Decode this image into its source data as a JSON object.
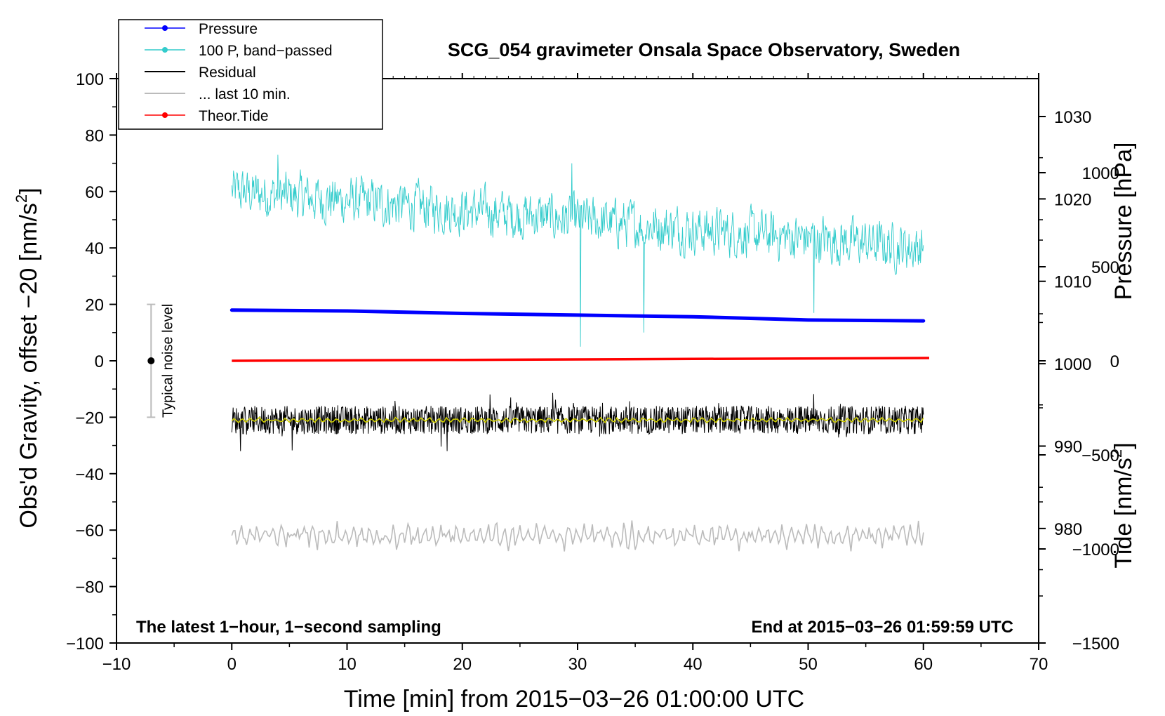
{
  "chart_data": {
    "type": "line",
    "title": "SCG_054 gravimeter Onsala Space Observatory, Sweden",
    "xlabel": "Time [min] from 2015−03−26 01:00:00 UTC",
    "ylabel_left": "Obs'd Gravity, offset −20 [nm/s",
    "ylabel_left_sup": "2",
    "ylabel_left_end": "]",
    "ylabel_right_pressure": "Pressure [hPa]",
    "ylabel_right_tide": "Tide [nm/s",
    "ylabel_right_tide_sup": "2",
    "ylabel_right_tide_end": "]",
    "xlim": [
      -10,
      70
    ],
    "ylim_left": [
      -100,
      100
    ],
    "pressure_axis": {
      "range": [
        966.1,
        1034.6
      ],
      "ticks": [
        980,
        990,
        1000,
        1010,
        1020,
        1030
      ]
    },
    "tide_axis": {
      "range": [
        -1500,
        1500
      ],
      "ticks": [
        -1500,
        -1000,
        -500,
        0,
        500,
        1000
      ]
    },
    "x_ticks": [
      -10,
      0,
      10,
      20,
      30,
      40,
      50,
      60,
      70
    ],
    "x_tick_labels": [
      "−10",
      "0",
      "10",
      "20",
      "30",
      "40",
      "50",
      "60",
      "70"
    ],
    "y_ticks": [
      -100,
      -80,
      -60,
      -40,
      -20,
      0,
      20,
      40,
      60,
      80,
      100
    ],
    "y_tick_labels": [
      "−100",
      "−80",
      "−60",
      "−40",
      "−20",
      "0",
      "20",
      "40",
      "60",
      "80",
      "100"
    ],
    "pressure_tick_labels": [
      "980",
      "990",
      "1000",
      "1010",
      "1020",
      "1030"
    ],
    "tide_tick_labels": [
      "−1500",
      "−1000",
      "−500",
      "0",
      "500",
      "1000"
    ],
    "legend": {
      "placement": "top-left",
      "entries": [
        {
          "label": "Pressure",
          "color": "#0000ff",
          "marker": true
        },
        {
          "label": "100 P, band−passed",
          "color": "#33cccc",
          "marker": true
        },
        {
          "label": "Residual",
          "color": "#000000",
          "marker": false
        },
        {
          "label": "... last 10 min.",
          "color": "#bbbbbb",
          "marker": false
        },
        {
          "label": "Theor.Tide",
          "color": "#ff0000",
          "marker": true
        }
      ]
    },
    "series": [
      {
        "name": "Pressure",
        "color": "#0000ff",
        "axis": "pressure",
        "x": [
          0,
          10,
          20,
          30,
          40,
          50,
          60
        ],
        "values": [
          1006.5,
          1006.4,
          1006.1,
          1005.9,
          1005.7,
          1005.3,
          1005.2
        ]
      },
      {
        "name": "100 P, band-passed",
        "color": "#33cccc",
        "axis": "left",
        "x_range": [
          0,
          60
        ],
        "center_start": 60,
        "center_end": 40,
        "amplitude": 7,
        "min": 5,
        "max": 73
      },
      {
        "name": "Residual",
        "color": "#000000",
        "axis": "left",
        "x_range": [
          0,
          60
        ],
        "center": -21,
        "min": -32,
        "max": -11
      },
      {
        "name": "Residual smoothed",
        "color": "#cccc00",
        "axis": "left",
        "x_range": [
          0,
          60
        ],
        "center": -21
      },
      {
        "name": "... last 10 min.",
        "color": "#bbbbbb",
        "axis": "left",
        "x_range": [
          0,
          60
        ],
        "center": -62,
        "min": -72,
        "max": -53
      },
      {
        "name": "Theor.Tide",
        "color": "#ff0000",
        "axis": "tide",
        "x": [
          0,
          20,
          40,
          60.5
        ],
        "values": [
          0,
          5,
          10,
          15
        ]
      }
    ],
    "noise_bar": {
      "label": "Typical noise level",
      "x": -7,
      "center": 0,
      "half_range": 20
    },
    "annotations": {
      "left": "The latest 1−hour, 1−second sampling",
      "right": "End at 2015−03−26 01:59:59 UTC"
    }
  }
}
